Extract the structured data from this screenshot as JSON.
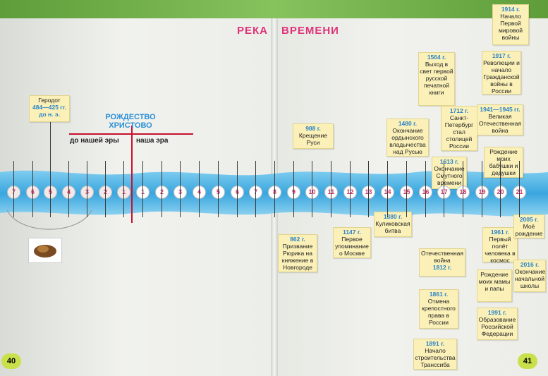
{
  "header": {
    "title_part1": "РЕКА",
    "title_part2": "ВРЕМЕНИ"
  },
  "center_label": {
    "line1": "РОЖДЕСТВО",
    "line2": "ХРИСТОВО"
  },
  "eras": {
    "before": "до нашей эры",
    "after": "наша эра"
  },
  "centuries_bc": [
    "7",
    "6",
    "5",
    "4",
    "3",
    "2",
    "1"
  ],
  "centuries_ad": [
    "1",
    "2",
    "3",
    "4",
    "5",
    "6",
    "7",
    "8",
    "9",
    "10",
    "11",
    "12",
    "13",
    "14",
    "15",
    "16",
    "17",
    "18",
    "19",
    "20",
    "21"
  ],
  "notes": {
    "herodot": {
      "name": "Геродот",
      "year": "484—425 гг.",
      "suffix": "до н. э."
    },
    "n988": {
      "year": "988 г.",
      "text": "Крещение Руси"
    },
    "n862": {
      "year": "862 г.",
      "text": "Призвание Рюрика на княжение в Новгороде"
    },
    "n1147": {
      "year": "1147 г.",
      "text": "Первое упоминание о Москве"
    },
    "n1380": {
      "year": "1380 г.",
      "text": "Куликовская битва"
    },
    "n1480": {
      "year": "1480 г.",
      "text": "Окончание ордынского владычества над Русью"
    },
    "n1564": {
      "year": "1564 г.",
      "text": "Выход в свет первой русской печатной книги"
    },
    "n1613": {
      "year": "1613 г.",
      "text": "Окончание Смутного времени"
    },
    "n1712": {
      "year": "1712 г.",
      "text": "Санкт-Петербург стал столицей России"
    },
    "n1914": {
      "year": "1914 г.",
      "text": "Начало Первой мировой войны"
    },
    "n1917": {
      "year": "1917 г.",
      "text": "Революции и начало Гражданской войны в России"
    },
    "n1941": {
      "year": "1941—1945 гг.",
      "text": "Великая Отечественная война"
    },
    "grandparents": {
      "text": "Рождение моих бабушки и дедушки"
    },
    "n1812": {
      "text": "Отечественная война",
      "year": "1812 г."
    },
    "n1861": {
      "year": "1861 г.",
      "text": "Отмена крепостного права в России"
    },
    "n1891": {
      "year": "1891 г.",
      "text": "Начало строительства Транссиба"
    },
    "n1961": {
      "year": "1961 г.",
      "text": "Первый полёт человека в космос"
    },
    "parents": {
      "text": "Рождение моих мамы и папы"
    },
    "n1991": {
      "year": "1991 г.",
      "text": "Образование Российской Федерации"
    },
    "n2005": {
      "year": "2005 г.",
      "text": "Моё рождение"
    },
    "n2016": {
      "year": "2016 г.",
      "text": "Окончание начальной школы"
    }
  },
  "page_numbers": {
    "left": "40",
    "right": "41"
  },
  "colors": {
    "river": "#4fb4e6",
    "note": "#fbf1b8",
    "year": "#2b82c9",
    "title": "#e0337a"
  }
}
